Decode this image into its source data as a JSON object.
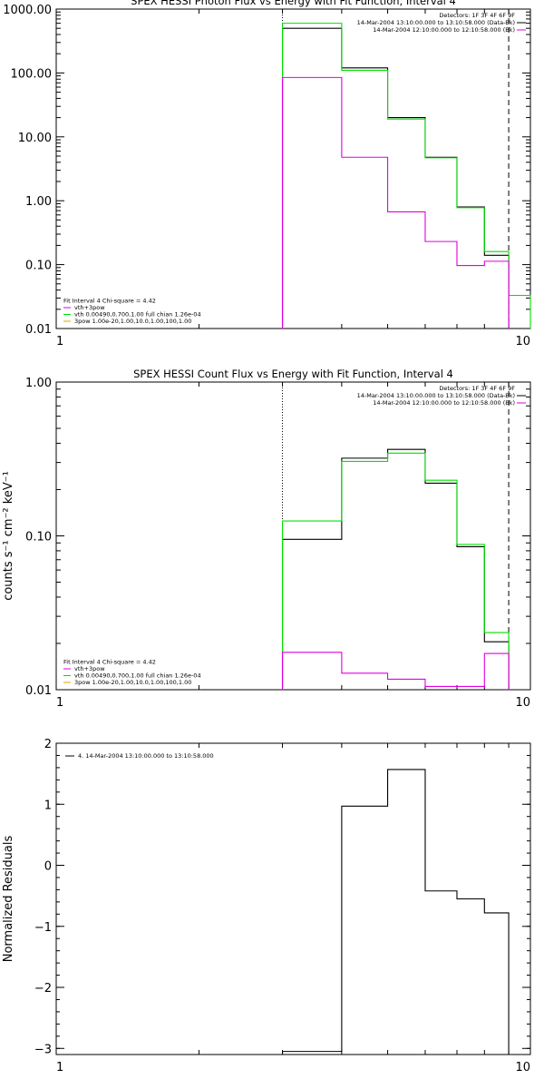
{
  "chart_data": [
    {
      "type": "line",
      "title": "SPEX HESSI Photon Flux vs Energy with Fit Function, Interval 4",
      "xlabel": "",
      "ylabel": "",
      "x_scale": "log",
      "y_scale": "log",
      "xlim": [
        1,
        10
      ],
      "ylim": [
        0.01,
        1000
      ],
      "x_ticks": [
        {
          "v": 1,
          "label": "1"
        },
        {
          "v": 10,
          "label": "10"
        }
      ],
      "y_ticks": [
        {
          "v": 0.01,
          "label": "0.01"
        },
        {
          "v": 0.1,
          "label": "0.10"
        },
        {
          "v": 1,
          "label": "1.00"
        },
        {
          "v": 10,
          "label": "10.00"
        },
        {
          "v": 100,
          "label": "100.00"
        },
        {
          "v": 1000,
          "label": "1000.00"
        }
      ],
      "bin_edges": [
        3.0,
        4.0,
        5.0,
        6.0,
        7.0,
        8.0,
        9.0,
        10.0
      ],
      "vlines": [
        {
          "x": 3.0,
          "style": "dotted"
        },
        {
          "x": 9.0,
          "style": "dashed"
        }
      ],
      "series": [
        {
          "color": "#000000",
          "values": [
            500,
            120,
            20,
            4.8,
            0.8,
            0.14,
            null
          ]
        },
        {
          "color": "#00e000",
          "values": [
            600,
            110,
            19,
            4.7,
            0.78,
            0.16,
            0.033
          ]
        },
        {
          "color": "#e000e0",
          "values": [
            85,
            4.8,
            0.67,
            0.23,
            0.097,
            0.113,
            null
          ]
        }
      ],
      "legend_top_right": [
        {
          "text": "Detectors: 1F 3F 4F 6F 9F",
          "color": null
        },
        {
          "text": "14-Mar-2004 13:10:00.000 to 13:10:58.000 (Data-Bk)",
          "color": "#000000"
        },
        {
          "text": "14-Mar-2004 12:10:00.000 to 12:10:58.000 (Bk)",
          "color": "#e000e0"
        }
      ],
      "legend_bottom_left": [
        {
          "text": "Fit Interval 4   Chi-square = 4.42",
          "color": null
        },
        {
          "text": "vth+3pow",
          "color": "#e000e0"
        },
        {
          "text": "vth 0.00490,0.700,1.00  full chian 1.26e-04",
          "color": "#00e000"
        },
        {
          "text": "3pow 1.00e-20,1.00,10.0,1.00,100,1.00",
          "color": "#e0a000"
        }
      ]
    },
    {
      "type": "line",
      "title": "SPEX HESSI Count Flux vs Energy with Fit Function, Interval 4",
      "xlabel": "",
      "ylabel": "counts s⁻¹ cm⁻² keV⁻¹",
      "x_scale": "log",
      "y_scale": "log",
      "xlim": [
        1,
        10
      ],
      "ylim": [
        0.01,
        1
      ],
      "x_ticks": [
        {
          "v": 1,
          "label": "1"
        },
        {
          "v": 10,
          "label": "10"
        }
      ],
      "y_ticks": [
        {
          "v": 0.01,
          "label": "0.01"
        },
        {
          "v": 0.1,
          "label": "0.10"
        },
        {
          "v": 1,
          "label": "1.00"
        }
      ],
      "bin_edges": [
        3.0,
        4.0,
        5.0,
        6.0,
        7.0,
        8.0,
        9.0
      ],
      "vlines": [
        {
          "x": 3.0,
          "style": "dotted"
        },
        {
          "x": 9.0,
          "style": "dashed"
        }
      ],
      "series": [
        {
          "color": "#000000",
          "values": [
            0.095,
            0.32,
            0.365,
            0.22,
            0.085,
            0.0205
          ]
        },
        {
          "color": "#00e000",
          "values": [
            0.125,
            0.305,
            0.345,
            0.23,
            0.088,
            0.0235
          ]
        },
        {
          "color": "#e000e0",
          "values": [
            0.0175,
            0.0128,
            0.0117,
            0.0105,
            0.0105,
            0.0172
          ]
        }
      ],
      "legend_top_right": [
        {
          "text": "Detectors: 1F 3F 4F 6F 9F",
          "color": null
        },
        {
          "text": "14-Mar-2004 13:10:00.000 to 13:10:58.000 (Data-Bk)",
          "color": "#000000"
        },
        {
          "text": "14-Mar-2004 12:10:00.000 to 12:10:58.000 (Bk)",
          "color": "#e000e0"
        }
      ],
      "legend_bottom_left": [
        {
          "text": "Fit Interval 4   Chi-square = 4.42",
          "color": null
        },
        {
          "text": "vth+3pow",
          "color": "#e000e0"
        },
        {
          "text": "vth 0.00490,0.700,1.00  full chian 1.26e-04",
          "color": "#00e000"
        },
        {
          "text": "3pow 1.00e-20,1.00,10.0,1.00,100,1.00",
          "color": "#e0a000"
        }
      ]
    },
    {
      "type": "line",
      "title": "",
      "xlabel": "",
      "ylabel": "Normalized Residuals",
      "x_scale": "log",
      "y_scale": "linear",
      "xlim": [
        1,
        10
      ],
      "ylim": [
        -3.1,
        2.0
      ],
      "x_ticks": [
        {
          "v": 1,
          "label": "1"
        },
        {
          "v": 10,
          "label": "10"
        }
      ],
      "y_ticks": [
        {
          "v": -3,
          "label": "−3"
        },
        {
          "v": -2,
          "label": "−2"
        },
        {
          "v": -1,
          "label": "−1"
        },
        {
          "v": 0,
          "label": "0"
        },
        {
          "v": 1,
          "label": "1"
        },
        {
          "v": 2,
          "label": "2"
        }
      ],
      "bin_edges": [
        3.0,
        4.0,
        5.0,
        6.0,
        7.0,
        8.0,
        9.0
      ],
      "vlines": [],
      "series": [
        {
          "color": "#000000",
          "values": [
            -3.05,
            0.97,
            1.57,
            -0.42,
            -0.55,
            -0.78
          ]
        }
      ],
      "legend_top_left": [
        {
          "text": "4. 14-Mar-2004 13:10:00.000 to 13:10:58.000",
          "color": "#000000"
        }
      ]
    }
  ]
}
